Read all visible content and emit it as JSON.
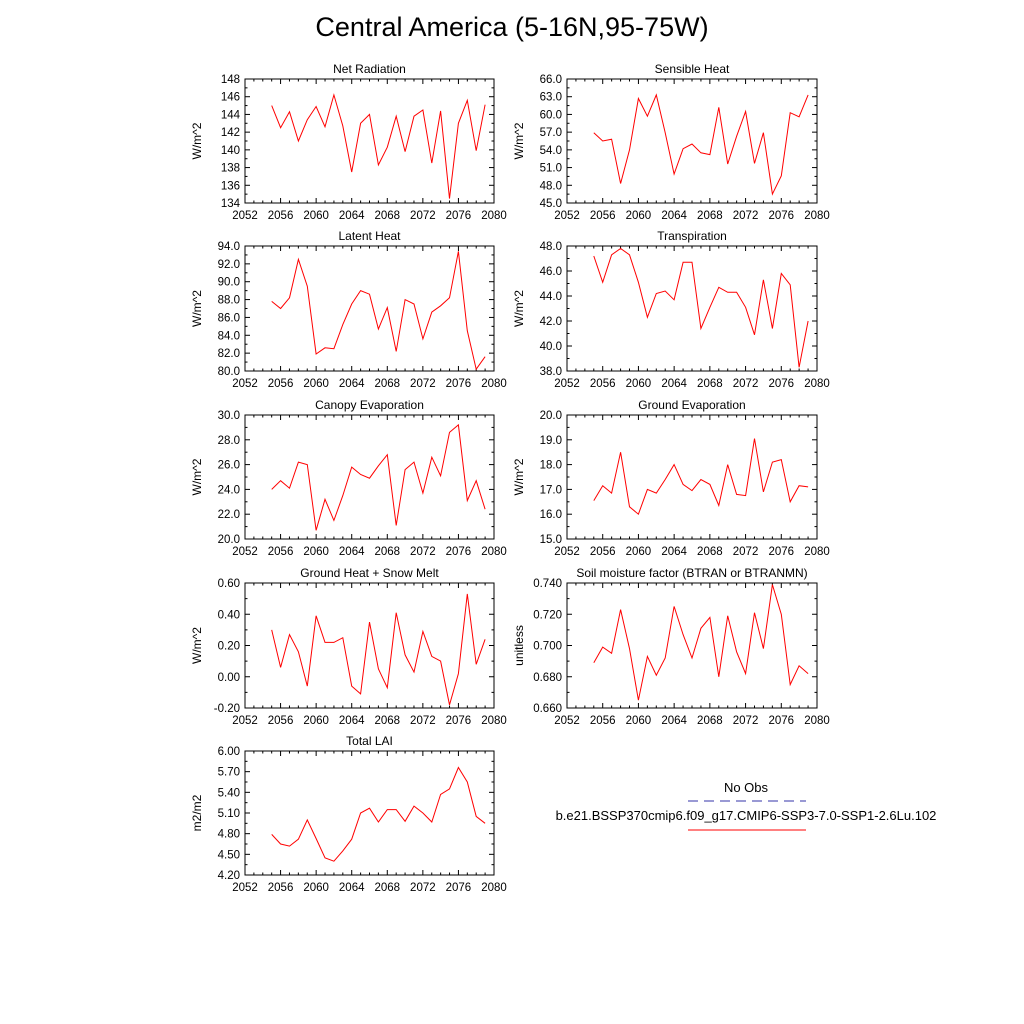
{
  "title": "Central America (5-16N,95-75W)",
  "colors": {
    "model_line": "#ff0000",
    "obs_line": "#3333aa",
    "axis": "#000000"
  },
  "legend": {
    "obs_label": "No Obs",
    "model_label": "b.e21.BSSP370cmip6.f09_g17.CMIP6-SSP3-7.0-SSP1-2.6Lu.102"
  },
  "chart_data": [
    {
      "type": "line",
      "title": "Net Radiation",
      "xlabel": "",
      "ylabel": "W/m^2",
      "xlim": [
        2052,
        2080
      ],
      "ylim": [
        134,
        148
      ],
      "xticks": [
        "2052",
        "2056",
        "2060",
        "2064",
        "2068",
        "2072",
        "2076",
        "2080"
      ],
      "yticks": [
        "134",
        "136",
        "138",
        "140",
        "142",
        "144",
        "146",
        "148"
      ],
      "series": [
        {
          "x": [
            2055,
            2056,
            2057,
            2058,
            2059,
            2060,
            2061,
            2062,
            2063,
            2064,
            2065,
            2066,
            2067,
            2068,
            2069,
            2070,
            2071,
            2072,
            2073,
            2074,
            2075,
            2076,
            2077,
            2078,
            2079
          ],
          "values": [
            145.0,
            142.5,
            144.3,
            141.0,
            143.4,
            144.9,
            142.6,
            146.2,
            142.7,
            137.5,
            143.0,
            144.0,
            138.3,
            140.3,
            143.8,
            139.8,
            143.8,
            144.5,
            138.5,
            144.4,
            134.5,
            143.0,
            145.6,
            139.9,
            145.1
          ]
        }
      ]
    },
    {
      "type": "line",
      "title": "Sensible Heat",
      "xlabel": "",
      "ylabel": "W/m^2",
      "xlim": [
        2052,
        2080
      ],
      "ylim": [
        45,
        66
      ],
      "xticks": [
        "2052",
        "2056",
        "2060",
        "2064",
        "2068",
        "2072",
        "2076",
        "2080"
      ],
      "yticks": [
        "45.0",
        "48.0",
        "51.0",
        "54.0",
        "57.0",
        "60.0",
        "63.0",
        "66.0"
      ],
      "series": [
        {
          "x": [
            2055,
            2056,
            2057,
            2058,
            2059,
            2060,
            2061,
            2062,
            2063,
            2064,
            2065,
            2066,
            2067,
            2068,
            2069,
            2070,
            2071,
            2072,
            2073,
            2074,
            2075,
            2076,
            2077,
            2078,
            2079
          ],
          "values": [
            56.9,
            55.5,
            55.8,
            48.3,
            54.0,
            62.7,
            59.7,
            63.3,
            56.9,
            49.9,
            54.2,
            55.0,
            53.5,
            53.2,
            61.2,
            51.6,
            56.3,
            60.5,
            51.7,
            56.9,
            46.5,
            49.6,
            60.3,
            59.6,
            63.3
          ]
        }
      ]
    },
    {
      "type": "line",
      "title": "Latent Heat",
      "xlabel": "",
      "ylabel": "W/m^2",
      "xlim": [
        2052,
        2080
      ],
      "ylim": [
        80,
        94
      ],
      "xticks": [
        "2052",
        "2056",
        "2060",
        "2064",
        "2068",
        "2072",
        "2076",
        "2080"
      ],
      "yticks": [
        "80.0",
        "82.0",
        "84.0",
        "86.0",
        "88.0",
        "90.0",
        "92.0",
        "94.0"
      ],
      "series": [
        {
          "x": [
            2055,
            2056,
            2057,
            2058,
            2059,
            2060,
            2061,
            2062,
            2063,
            2064,
            2065,
            2066,
            2067,
            2068,
            2069,
            2070,
            2071,
            2072,
            2073,
            2074,
            2075,
            2076,
            2077,
            2078,
            2079
          ],
          "values": [
            87.8,
            87.0,
            88.2,
            92.5,
            89.5,
            81.9,
            82.6,
            82.5,
            85.2,
            87.5,
            89.0,
            88.6,
            84.7,
            87.1,
            82.2,
            88.0,
            87.5,
            83.6,
            86.6,
            87.3,
            88.2,
            93.4,
            84.5,
            80.2,
            81.6
          ]
        }
      ]
    },
    {
      "type": "line",
      "title": "Transpiration",
      "xlabel": "",
      "ylabel": "W/m^2",
      "xlim": [
        2052,
        2080
      ],
      "ylim": [
        38,
        48
      ],
      "xticks": [
        "2052",
        "2056",
        "2060",
        "2064",
        "2068",
        "2072",
        "2076",
        "2080"
      ],
      "yticks": [
        "38.0",
        "40.0",
        "42.0",
        "44.0",
        "46.0",
        "48.0"
      ],
      "series": [
        {
          "x": [
            2055,
            2056,
            2057,
            2058,
            2059,
            2060,
            2061,
            2062,
            2063,
            2064,
            2065,
            2066,
            2067,
            2068,
            2069,
            2070,
            2071,
            2072,
            2073,
            2074,
            2075,
            2076,
            2077,
            2078,
            2079
          ],
          "values": [
            47.2,
            45.1,
            47.3,
            47.8,
            47.3,
            45.1,
            42.3,
            44.2,
            44.4,
            43.7,
            46.7,
            46.7,
            41.4,
            43.1,
            44.7,
            44.3,
            44.3,
            43.1,
            40.9,
            45.3,
            41.4,
            45.8,
            44.9,
            38.3,
            42.0
          ]
        }
      ]
    },
    {
      "type": "line",
      "title": "Canopy Evaporation",
      "xlabel": "",
      "ylabel": "W/m^2",
      "xlim": [
        2052,
        2080
      ],
      "ylim": [
        20,
        30
      ],
      "xticks": [
        "2052",
        "2056",
        "2060",
        "2064",
        "2068",
        "2072",
        "2076",
        "2080"
      ],
      "yticks": [
        "20.0",
        "22.0",
        "24.0",
        "26.0",
        "28.0",
        "30.0"
      ],
      "series": [
        {
          "x": [
            2055,
            2056,
            2057,
            2058,
            2059,
            2060,
            2061,
            2062,
            2063,
            2064,
            2065,
            2066,
            2067,
            2068,
            2069,
            2070,
            2071,
            2072,
            2073,
            2074,
            2075,
            2076,
            2077,
            2078,
            2079
          ],
          "values": [
            24.0,
            24.7,
            24.1,
            26.2,
            26.0,
            20.7,
            23.2,
            21.5,
            23.5,
            25.8,
            25.2,
            24.9,
            25.9,
            26.8,
            21.1,
            25.6,
            26.2,
            23.7,
            26.6,
            25.1,
            28.6,
            29.2,
            23.1,
            24.7,
            22.4
          ]
        }
      ]
    },
    {
      "type": "line",
      "title": "Ground Evaporation",
      "xlabel": "",
      "ylabel": "W/m^2",
      "xlim": [
        2052,
        2080
      ],
      "ylim": [
        15,
        20
      ],
      "xticks": [
        "2052",
        "2056",
        "2060",
        "2064",
        "2068",
        "2072",
        "2076",
        "2080"
      ],
      "yticks": [
        "15.0",
        "16.0",
        "17.0",
        "18.0",
        "19.0",
        "20.0"
      ],
      "series": [
        {
          "x": [
            2055,
            2056,
            2057,
            2058,
            2059,
            2060,
            2061,
            2062,
            2063,
            2064,
            2065,
            2066,
            2067,
            2068,
            2069,
            2070,
            2071,
            2072,
            2073,
            2074,
            2075,
            2076,
            2077,
            2078,
            2079
          ],
          "values": [
            16.55,
            17.15,
            16.85,
            18.5,
            16.3,
            16.0,
            17.0,
            16.85,
            17.4,
            18.0,
            17.2,
            16.95,
            17.4,
            17.2,
            16.35,
            18.0,
            16.8,
            16.75,
            19.05,
            16.9,
            18.1,
            18.2,
            16.5,
            17.15,
            17.1
          ]
        }
      ]
    },
    {
      "type": "line",
      "title": "Ground Heat + Snow Melt",
      "xlabel": "",
      "ylabel": "W/m^2",
      "xlim": [
        2052,
        2080
      ],
      "ylim": [
        -0.2,
        0.6
      ],
      "xticks": [
        "2052",
        "2056",
        "2060",
        "2064",
        "2068",
        "2072",
        "2076",
        "2080"
      ],
      "yticks": [
        "-0.20",
        "0.00",
        "0.20",
        "0.40",
        "0.60"
      ],
      "series": [
        {
          "x": [
            2055,
            2056,
            2057,
            2058,
            2059,
            2060,
            2061,
            2062,
            2063,
            2064,
            2065,
            2066,
            2067,
            2068,
            2069,
            2070,
            2071,
            2072,
            2073,
            2074,
            2075,
            2076,
            2077,
            2078,
            2079
          ],
          "values": [
            0.3,
            0.06,
            0.27,
            0.16,
            -0.06,
            0.39,
            0.22,
            0.22,
            0.25,
            -0.06,
            -0.11,
            0.35,
            0.05,
            -0.07,
            0.41,
            0.14,
            0.03,
            0.29,
            0.13,
            0.1,
            -0.18,
            0.02,
            0.53,
            0.08,
            0.24
          ]
        }
      ]
    },
    {
      "type": "line",
      "title": "Soil moisture factor (BTRAN or BTRANMN)",
      "xlabel": "",
      "ylabel": "unitless",
      "xlim": [
        2052,
        2080
      ],
      "ylim": [
        0.66,
        0.74
      ],
      "xticks": [
        "2052",
        "2056",
        "2060",
        "2064",
        "2068",
        "2072",
        "2076",
        "2080"
      ],
      "yticks": [
        "0.660",
        "0.680",
        "0.700",
        "0.720",
        "0.740"
      ],
      "series": [
        {
          "x": [
            2055,
            2056,
            2057,
            2058,
            2059,
            2060,
            2061,
            2062,
            2063,
            2064,
            2065,
            2066,
            2067,
            2068,
            2069,
            2070,
            2071,
            2072,
            2073,
            2074,
            2075,
            2076,
            2077,
            2078,
            2079
          ],
          "values": [
            0.689,
            0.699,
            0.695,
            0.723,
            0.698,
            0.665,
            0.693,
            0.681,
            0.692,
            0.725,
            0.707,
            0.692,
            0.711,
            0.718,
            0.68,
            0.719,
            0.696,
            0.682,
            0.721,
            0.698,
            0.739,
            0.72,
            0.675,
            0.687,
            0.682
          ]
        }
      ]
    },
    {
      "type": "line",
      "title": "Total LAI",
      "xlabel": "",
      "ylabel": "m2/m2",
      "xlim": [
        2052,
        2080
      ],
      "ylim": [
        4.2,
        6.0
      ],
      "xticks": [
        "2052",
        "2056",
        "2060",
        "2064",
        "2068",
        "2072",
        "2076",
        "2080"
      ],
      "yticks": [
        "4.20",
        "4.50",
        "4.80",
        "5.10",
        "5.40",
        "5.70",
        "6.00"
      ],
      "series": [
        {
          "x": [
            2055,
            2056,
            2057,
            2058,
            2059,
            2060,
            2061,
            2062,
            2063,
            2064,
            2065,
            2066,
            2067,
            2068,
            2069,
            2070,
            2071,
            2072,
            2073,
            2074,
            2075,
            2076,
            2077,
            2078,
            2079
          ],
          "values": [
            4.79,
            4.65,
            4.62,
            4.72,
            5.0,
            4.73,
            4.45,
            4.4,
            4.55,
            4.72,
            5.1,
            5.17,
            4.97,
            5.15,
            5.15,
            4.98,
            5.2,
            5.1,
            4.97,
            5.37,
            5.45,
            5.76,
            5.55,
            5.05,
            4.95
          ]
        }
      ]
    }
  ]
}
